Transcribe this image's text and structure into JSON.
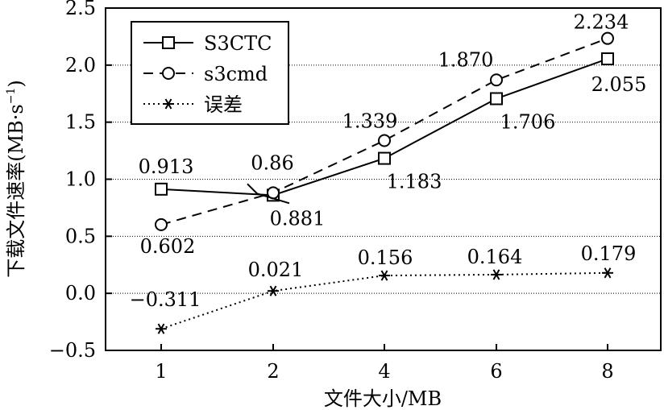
{
  "chart_data": {
    "type": "line",
    "title": "",
    "xlabel": "文件大小/MB",
    "ylabel": "下载文件速率(MB·s",
    "ylabel_sup": "−1",
    "ylabel_close": ")",
    "categories": [
      "1",
      "2",
      "4",
      "6",
      "8"
    ],
    "ylim": [
      -0.5,
      2.5
    ],
    "yticks": [
      -0.5,
      0.0,
      0.5,
      1.0,
      1.5,
      2.0,
      2.5
    ],
    "ytick_labels": [
      "−0.5",
      "0.0",
      "0.5",
      "1.0",
      "1.5",
      "2.0",
      "2.5"
    ],
    "grid": "horizontal-dotted",
    "legend_position": "top-left",
    "series": [
      {
        "name": "S3CTC",
        "style": "solid",
        "marker": "square",
        "values": [
          0.913,
          0.86,
          1.183,
          1.706,
          2.055
        ],
        "labels": [
          "0.913",
          "0.86",
          "1.183",
          "1.706",
          "2.055"
        ]
      },
      {
        "name": "s3cmd",
        "style": "dashed",
        "marker": "circle",
        "values": [
          0.602,
          0.881,
          1.339,
          1.87,
          2.234
        ],
        "labels": [
          "0.602",
          "0.881",
          "1.339",
          "1.870",
          "2.234"
        ]
      },
      {
        "name": "误差",
        "style": "dotted",
        "marker": "asterisk",
        "values": [
          -0.311,
          0.021,
          0.156,
          0.164,
          0.179
        ],
        "labels": [
          "−0.311",
          "0.021",
          "0.156",
          "0.164",
          "0.179"
        ]
      }
    ]
  }
}
